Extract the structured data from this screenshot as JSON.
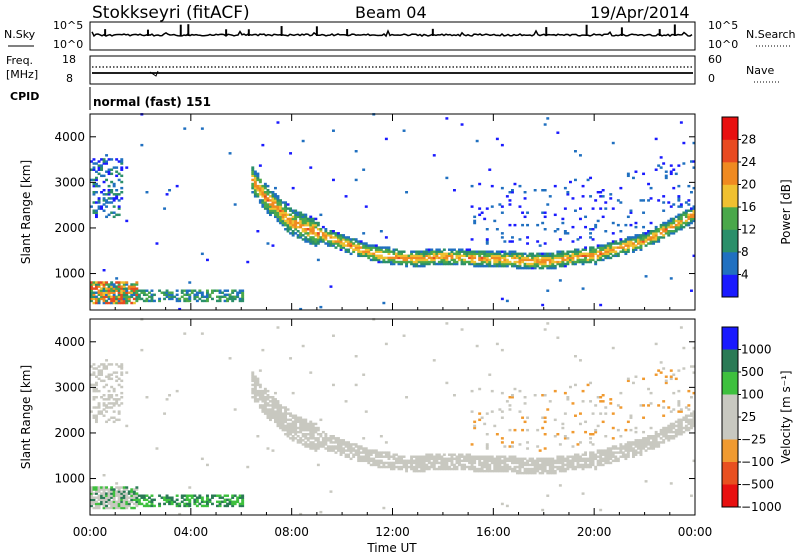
{
  "header": {
    "station": "Stokkseyri (fitACF)",
    "beam": "Beam 04",
    "date": "19/Apr/2014"
  },
  "nsky_panel": {
    "left_label": "N.Sky",
    "right_label": "N.Search",
    "ticks_left": [
      "10^5",
      "10^0"
    ],
    "ticks_right": [
      "10^5",
      "10^0"
    ]
  },
  "freq_panel": {
    "left_label_1": "Freq.",
    "left_label_2": "[MHz]",
    "ticks_left": [
      "18",
      "8"
    ],
    "ticks_right": [
      "60",
      "0"
    ],
    "right_label": "Nave"
  },
  "cpid_panel": {
    "label": "CPID",
    "mode": "normal (fast) 151"
  },
  "colors": {
    "power": [
      "#1a1aff",
      "#2070c0",
      "#2a8f6a",
      "#4aa84a",
      "#f0c030",
      "#f08a20",
      "#e84a20",
      "#e81010"
    ],
    "velocity": [
      "#e81010",
      "#e85020",
      "#f09a30",
      "#c8c8c0",
      "#c8c8c0",
      "#3ec03e",
      "#2a7a55",
      "#1a1aff"
    ],
    "velocity_background": "#c8c8c0"
  },
  "chart_data": [
    {
      "type": "heatmap",
      "quantity": "power",
      "ylabel": "Slant Range [km]",
      "xlabel": "",
      "ylim": [
        200,
        4500
      ],
      "yticks": [
        "1000",
        "2000",
        "3000",
        "4000"
      ],
      "colorbar_label": "Power [dB]",
      "colorbar_ticks": [
        "4",
        "8",
        "12",
        "16",
        "20",
        "24",
        "28"
      ],
      "echo_regions": [
        {
          "t0": 0.0,
          "t1": 1.9,
          "r0": 300,
          "r1": 800,
          "power": 22
        },
        {
          "t0": 1.9,
          "t1": 6.0,
          "r0": 350,
          "r1": 650,
          "power": 14
        },
        {
          "t0": 0.0,
          "t1": 1.3,
          "r0": 2200,
          "r1": 3500,
          "power": 7
        },
        {
          "t0": 6.2,
          "t1": 24.0,
          "trace": "band",
          "power": 15
        }
      ],
      "trace_points": [
        {
          "t": 6.3,
          "r": 3100
        },
        {
          "t": 7.0,
          "r": 2600
        },
        {
          "t": 8.0,
          "r": 2100
        },
        {
          "t": 9.5,
          "r": 1750
        },
        {
          "t": 11.0,
          "r": 1450
        },
        {
          "t": 12.5,
          "r": 1300
        },
        {
          "t": 14.0,
          "r": 1350
        },
        {
          "t": 16.0,
          "r": 1300
        },
        {
          "t": 18.0,
          "r": 1250
        },
        {
          "t": 20.0,
          "r": 1400
        },
        {
          "t": 22.0,
          "r": 1700
        },
        {
          "t": 24.0,
          "r": 2300
        }
      ]
    },
    {
      "type": "heatmap",
      "quantity": "velocity",
      "ylabel": "Slant Range [km]",
      "xlabel": "Time UT",
      "ylim": [
        200,
        4500
      ],
      "yticks": [
        "1000",
        "2000",
        "3000",
        "4000"
      ],
      "xticks": [
        "00:00",
        "04:00",
        "08:00",
        "12:00",
        "16:00",
        "20:00",
        "00:00"
      ],
      "colorbar_label": "Velocity [m s⁻¹]",
      "colorbar_ticks": [
        "1000",
        "500",
        "100",
        "25",
        "−25",
        "−100",
        "−500",
        "−1000"
      ]
    }
  ]
}
